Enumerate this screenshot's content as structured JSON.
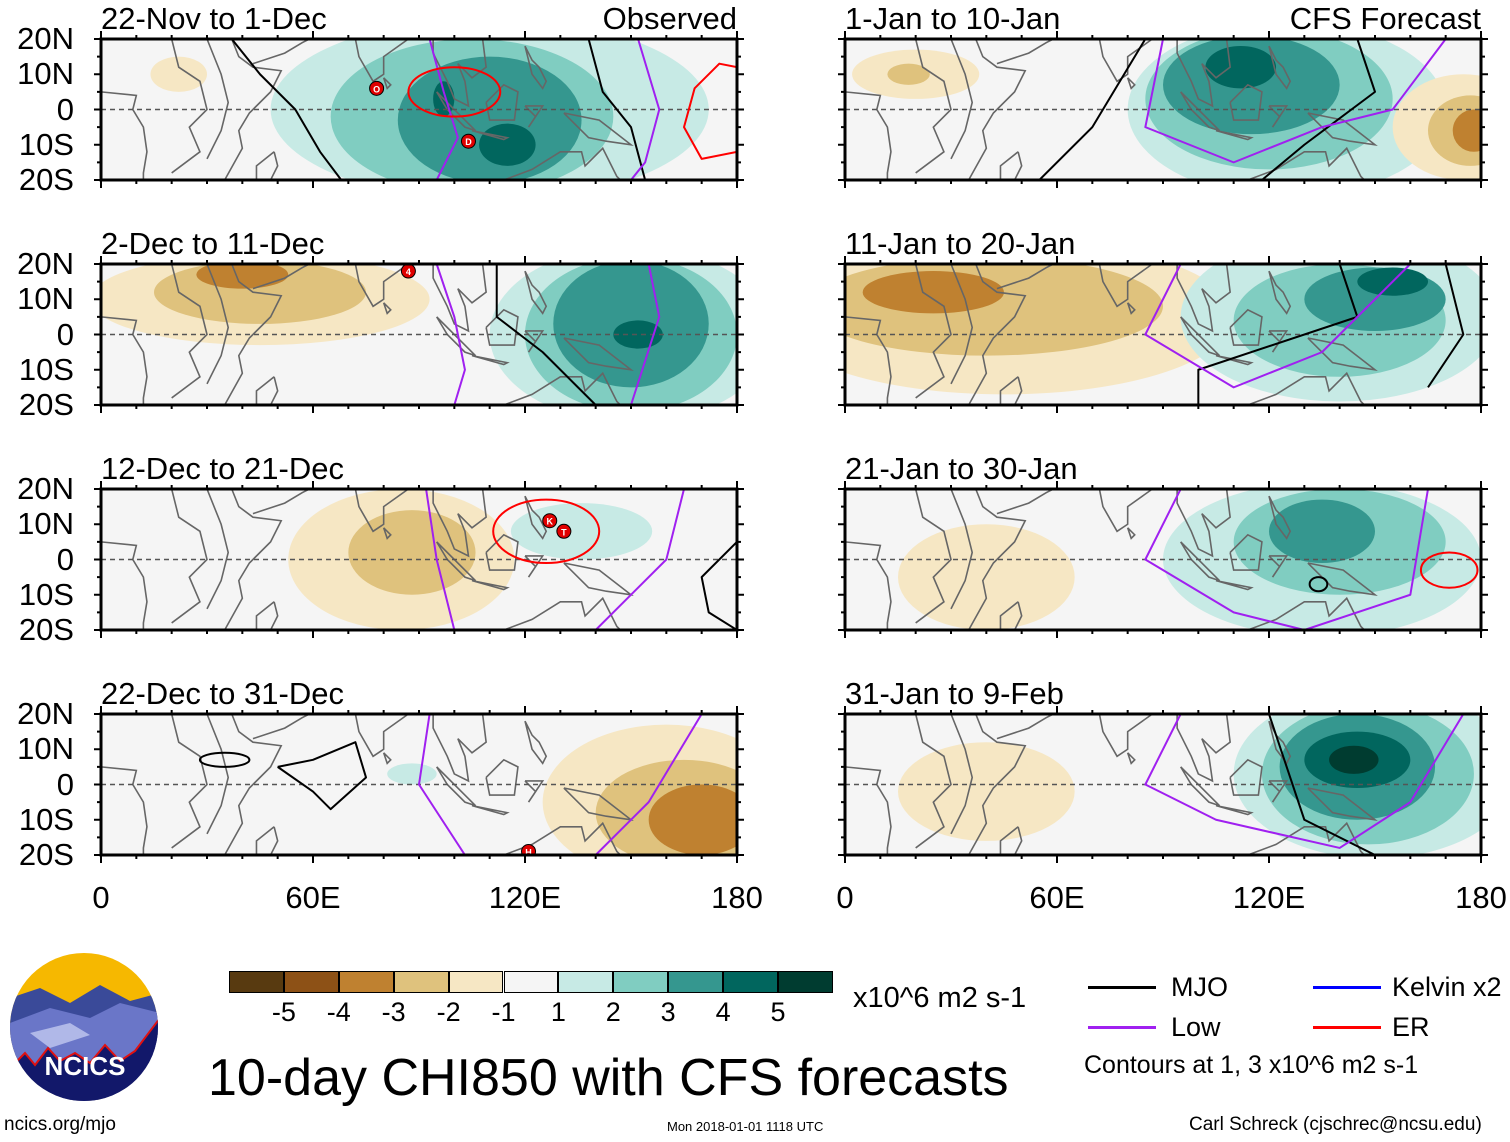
{
  "title": "10-day CHI850 with CFS forecasts",
  "source_link": "ncics.org/mjo",
  "timestamp": "Mon 2018-01-01 1118 UTC",
  "author": "Carl Schreck (cjschrec@ncsu.edu)",
  "logo_text": "NCICS",
  "observed_label": "Observed",
  "forecast_label": "CFS Forecast",
  "lat_labels": [
    "20N",
    "10N",
    "0",
    "10S",
    "20S"
  ],
  "lon_labels": [
    "0",
    "60E",
    "120E",
    "180"
  ],
  "colorbar": {
    "unit": "x10^6 m2 s-1",
    "labels": [
      "-5",
      "-4",
      "-3",
      "-2",
      "-1",
      "1",
      "2",
      "3",
      "4",
      "5"
    ],
    "colors": [
      "#583a10",
      "#8d5116",
      "#bf8130",
      "#dfc27d",
      "#f6e7c4",
      "#f5f5f5",
      "#c7eae5",
      "#80cdc1",
      "#35978f",
      "#01665e",
      "#003c30"
    ]
  },
  "legend": {
    "items": [
      {
        "label": "MJO",
        "color": "#000000"
      },
      {
        "label": "Kelvin x2",
        "color": "#0000ff"
      },
      {
        "label": "Low",
        "color": "#a020f0"
      },
      {
        "label": "ER",
        "color": "#ff0000"
      }
    ],
    "note": "Contours at 1, 3 x10^6 m2 s-1"
  },
  "chart_data": {
    "type": "map",
    "lon_range": [
      0,
      180
    ],
    "lat_range": [
      -20,
      20
    ],
    "panels": [
      {
        "title": "22-Nov to 1-Dec",
        "kind": "observed",
        "anomalies": [
          [
            110,
            0,
            62,
            26,
            1
          ],
          [
            105,
            -2,
            40,
            22,
            2
          ],
          [
            110,
            -3,
            26,
            18,
            3
          ],
          [
            115,
            -10,
            8,
            6,
            4
          ],
          [
            97,
            3,
            3,
            5,
            4
          ],
          [
            22,
            10,
            8,
            5,
            -1
          ]
        ],
        "contours": [
          {
            "type": "MJO",
            "pts": [
              [
                37,
                20
              ],
              [
                45,
                10
              ],
              [
                55,
                0
              ],
              [
                62,
                -12
              ],
              [
                68,
                -20
              ]
            ]
          },
          {
            "type": "MJO",
            "pts": [
              [
                138,
                20
              ],
              [
                142,
                5
              ],
              [
                150,
                -5
              ],
              [
                154,
                -20
              ]
            ]
          },
          {
            "type": "Low",
            "pts": [
              [
                93,
                20
              ],
              [
                97,
                5
              ],
              [
                101,
                -8
              ],
              [
                95,
                -20
              ]
            ]
          },
          {
            "type": "Low",
            "pts": [
              [
                152,
                20
              ],
              [
                158,
                0
              ],
              [
                154,
                -15
              ],
              [
                150,
                -20
              ]
            ]
          },
          {
            "type": "ER",
            "ellipse": [
              100,
              5,
              13,
              7
            ]
          },
          {
            "type": "ER",
            "pts": [
              [
                180,
                12
              ],
              [
                175,
                13
              ],
              [
                168,
                6
              ],
              [
                165,
                -5
              ],
              [
                170,
                -14
              ],
              [
                180,
                -12
              ]
            ]
          }
        ],
        "storms": [
          [
            78,
            6,
            "O"
          ],
          [
            104,
            -9,
            "D"
          ]
        ]
      },
      {
        "title": "2-Dec to 11-Dec",
        "kind": "observed",
        "anomalies": [
          [
            45,
            10,
            48,
            13,
            -1
          ],
          [
            45,
            12,
            30,
            9,
            -2
          ],
          [
            40,
            17,
            13,
            4,
            -3
          ],
          [
            150,
            0,
            40,
            25,
            1
          ],
          [
            150,
            0,
            30,
            22,
            2
          ],
          [
            150,
            3,
            22,
            18,
            3
          ],
          [
            152,
            0,
            7,
            4,
            4
          ]
        ],
        "contours": [
          {
            "type": "MJO",
            "pts": [
              [
                112,
                20
              ],
              [
                112,
                5
              ],
              [
                125,
                -5
              ],
              [
                135,
                -15
              ],
              [
                140,
                -20
              ]
            ]
          },
          {
            "type": "Low",
            "pts": [
              [
                95,
                20
              ],
              [
                100,
                5
              ],
              [
                103,
                -10
              ],
              [
                100,
                -20
              ]
            ]
          },
          {
            "type": "Low",
            "pts": [
              [
                155,
                20
              ],
              [
                158,
                5
              ],
              [
                150,
                -20
              ]
            ]
          }
        ],
        "storms": [
          [
            87,
            18,
            "4"
          ]
        ]
      },
      {
        "title": "12-Dec to 21-Dec",
        "kind": "observed",
        "anomalies": [
          [
            85,
            0,
            32,
            20,
            -1
          ],
          [
            88,
            2,
            18,
            12,
            -2
          ],
          [
            136,
            8,
            20,
            8,
            1
          ]
        ],
        "contours": [
          {
            "type": "ER",
            "ellipse": [
              126,
              8,
              15,
              9
            ]
          },
          {
            "type": "Low",
            "pts": [
              [
                92,
                20
              ],
              [
                95,
                0
              ],
              [
                100,
                -20
              ]
            ]
          },
          {
            "type": "Low",
            "pts": [
              [
                165,
                20
              ],
              [
                160,
                0
              ],
              [
                140,
                -20
              ]
            ]
          },
          {
            "type": "MJO",
            "pts": [
              [
                180,
                5
              ],
              [
                170,
                -5
              ],
              [
                172,
                -15
              ],
              [
                180,
                -20
              ]
            ]
          }
        ],
        "storms": [
          [
            127,
            11,
            "K"
          ],
          [
            131,
            8,
            "T"
          ]
        ]
      },
      {
        "title": "22-Dec to 31-Dec",
        "kind": "observed",
        "anomalies": [
          [
            160,
            -5,
            35,
            22,
            -1
          ],
          [
            165,
            -8,
            25,
            15,
            -2
          ],
          [
            170,
            -10,
            15,
            10,
            -3
          ],
          [
            88,
            3,
            7,
            3,
            1
          ]
        ],
        "contours": [
          {
            "type": "MJO",
            "ellipse": [
              35,
              7,
              7,
              2
            ]
          },
          {
            "type": "MJO",
            "pts": [
              [
                50,
                5
              ],
              [
                60,
                7
              ],
              [
                72,
                12
              ],
              [
                75,
                2
              ],
              [
                65,
                -7
              ],
              [
                60,
                -2
              ],
              [
                50,
                5
              ]
            ]
          },
          {
            "type": "Low",
            "pts": [
              [
                93,
                20
              ],
              [
                90,
                0
              ],
              [
                103,
                -20
              ]
            ]
          },
          {
            "type": "Low",
            "pts": [
              [
                170,
                20
              ],
              [
                155,
                -5
              ],
              [
                140,
                -20
              ]
            ]
          }
        ],
        "storms": [
          [
            121,
            -19,
            "H"
          ]
        ]
      },
      {
        "title": "1-Jan to 10-Jan",
        "kind": "forecast",
        "anomalies": [
          [
            125,
            0,
            45,
            25,
            1
          ],
          [
            120,
            3,
            35,
            20,
            2
          ],
          [
            115,
            7,
            25,
            14,
            3
          ],
          [
            112,
            12,
            10,
            6,
            4
          ],
          [
            20,
            10,
            18,
            7,
            -1
          ],
          [
            18,
            10,
            6,
            3,
            -2
          ],
          [
            175,
            -5,
            20,
            15,
            -1
          ],
          [
            177,
            -6,
            12,
            10,
            -2
          ],
          [
            178,
            -6,
            6,
            6,
            -3
          ]
        ],
        "contours": [
          {
            "type": "MJO",
            "pts": [
              [
                55,
                -20
              ],
              [
                70,
                -5
              ],
              [
                85,
                20
              ]
            ]
          },
          {
            "type": "MJO",
            "pts": [
              [
                145,
                20
              ],
              [
                150,
                5
              ],
              [
                130,
                -10
              ],
              [
                118,
                -20
              ]
            ]
          },
          {
            "type": "Low",
            "pts": [
              [
                90,
                20
              ],
              [
                85,
                -5
              ],
              [
                110,
                -15
              ],
              [
                135,
                -5
              ],
              [
                155,
                0
              ],
              [
                170,
                20
              ]
            ]
          }
        ],
        "storms": []
      },
      {
        "title": "11-Jan to 20-Jan",
        "kind": "forecast",
        "anomalies": [
          [
            45,
            5,
            65,
            22,
            -1
          ],
          [
            40,
            8,
            50,
            14,
            -2
          ],
          [
            25,
            12,
            20,
            6,
            -3
          ],
          [
            140,
            5,
            45,
            24,
            1
          ],
          [
            140,
            4,
            30,
            16,
            2
          ],
          [
            150,
            10,
            20,
            9,
            3
          ],
          [
            155,
            15,
            10,
            4,
            4
          ]
        ],
        "contours": [
          {
            "type": "MJO",
            "pts": [
              [
                140,
                20
              ],
              [
                145,
                5
              ],
              [
                100,
                -10
              ],
              [
                100,
                -20
              ]
            ]
          },
          {
            "type": "MJO",
            "pts": [
              [
                170,
                20
              ],
              [
                175,
                0
              ],
              [
                165,
                -15
              ]
            ]
          },
          {
            "type": "Low",
            "pts": [
              [
                95,
                20
              ],
              [
                85,
                0
              ],
              [
                110,
                -15
              ],
              [
                135,
                -5
              ],
              [
                160,
                20
              ]
            ]
          }
        ],
        "storms": []
      },
      {
        "title": "21-Jan to 30-Jan",
        "kind": "forecast",
        "anomalies": [
          [
            40,
            -5,
            25,
            15,
            -1
          ],
          [
            135,
            0,
            45,
            22,
            1
          ],
          [
            140,
            5,
            30,
            15,
            2
          ],
          [
            135,
            8,
            15,
            9,
            3
          ]
        ],
        "contours": [
          {
            "type": "MJO",
            "ellipse": [
              134,
              -7,
              2.5,
              2
            ]
          },
          {
            "type": "ER",
            "ellipse": [
              171,
              -3,
              8,
              5
            ]
          },
          {
            "type": "Low",
            "pts": [
              [
                95,
                20
              ],
              [
                85,
                0
              ],
              [
                110,
                -15
              ],
              [
                130,
                -20
              ],
              [
                160,
                -10
              ],
              [
                165,
                20
              ]
            ]
          }
        ],
        "storms": []
      },
      {
        "title": "31-Jan to 9-Feb",
        "kind": "forecast",
        "anomalies": [
          [
            40,
            -2,
            25,
            14,
            -1
          ],
          [
            150,
            3,
            40,
            24,
            1
          ],
          [
            148,
            3,
            30,
            20,
            2
          ],
          [
            145,
            5,
            22,
            15,
            3
          ],
          [
            145,
            7,
            15,
            8,
            4
          ],
          [
            144,
            7,
            7,
            4,
            5
          ]
        ],
        "contours": [
          {
            "type": "MJO",
            "pts": [
              [
                120,
                20
              ],
              [
                130,
                -10
              ],
              [
                150,
                -20
              ]
            ]
          },
          {
            "type": "Low",
            "pts": [
              [
                95,
                20
              ],
              [
                85,
                0
              ],
              [
                105,
                -10
              ],
              [
                140,
                -18
              ],
              [
                160,
                -5
              ],
              [
                175,
                20
              ]
            ]
          }
        ],
        "storms": []
      }
    ]
  }
}
